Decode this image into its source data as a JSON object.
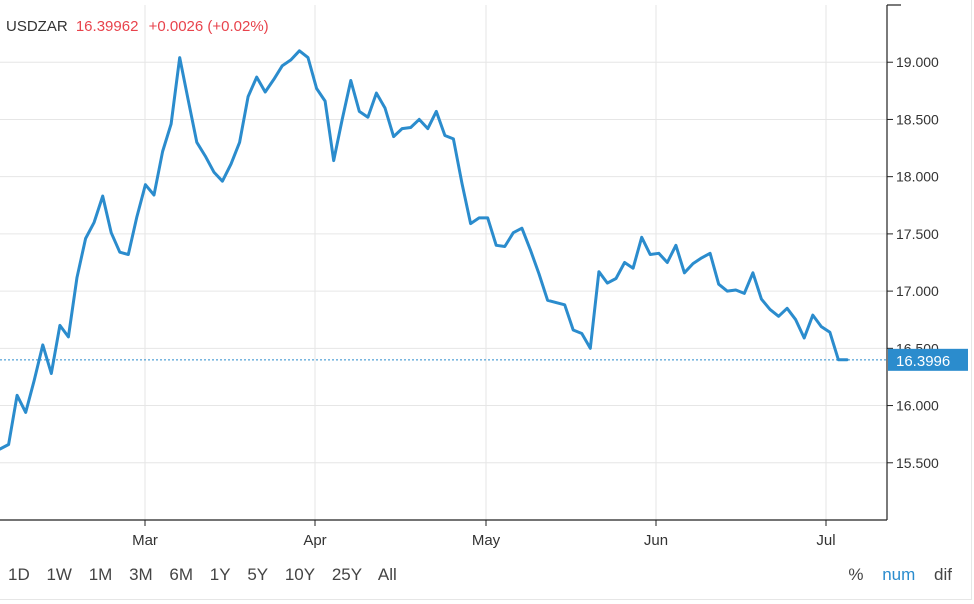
{
  "header": {
    "symbol": "USDZAR",
    "price": "16.39962",
    "change": "+0.0026 (+0.02%)"
  },
  "colors": {
    "line": "#2b8ccd",
    "change": "#e8434c",
    "grid": "#e6e6e6",
    "axis": "#222222",
    "badge_bg": "#2b8ccd",
    "badge_text": "#ffffff"
  },
  "range_buttons": [
    "1D",
    "1W",
    "1M",
    "3M",
    "6M",
    "1Y",
    "5Y",
    "10Y",
    "25Y",
    "All"
  ],
  "mode_buttons": [
    {
      "label": "%",
      "active": false
    },
    {
      "label": "num",
      "active": true
    },
    {
      "label": "dif",
      "active": false
    }
  ],
  "chart_data": {
    "type": "line",
    "title": "",
    "xlabel": "",
    "ylabel": "",
    "ylim": [
      15.0,
      19.5
    ],
    "y_ticks": [
      "15.500",
      "16.000",
      "16.500",
      "17.000",
      "17.500",
      "18.000",
      "18.500",
      "19.000"
    ],
    "x_ticks": [
      "Mar",
      "Apr",
      "May",
      "Jun",
      "Jul"
    ],
    "grid": true,
    "last_value_label": "16.3996",
    "last_value": 16.3996,
    "series": [
      {
        "values": [
          15.62,
          15.66,
          16.09,
          15.94,
          16.22,
          16.53,
          16.28,
          16.7,
          16.6,
          17.12,
          17.46,
          17.6,
          17.83,
          17.51,
          17.34,
          17.32,
          17.65,
          17.93,
          17.84,
          18.22,
          18.46,
          19.04,
          18.67,
          18.3,
          18.18,
          18.04,
          17.96,
          18.11,
          18.3,
          18.7,
          18.87,
          18.74,
          18.85,
          18.97,
          19.02,
          19.1,
          19.04,
          18.77,
          18.66,
          18.14,
          18.5,
          18.84,
          18.57,
          18.52,
          18.73,
          18.6,
          18.35,
          18.42,
          18.43,
          18.5,
          18.42,
          18.57,
          18.36,
          18.33,
          17.94,
          17.59,
          17.64,
          17.64,
          17.4,
          17.39,
          17.51,
          17.55,
          17.36,
          17.15,
          16.92,
          16.9,
          16.88,
          16.66,
          16.63,
          16.5,
          17.17,
          17.07,
          17.11,
          17.25,
          17.2,
          17.47,
          17.32,
          17.33,
          17.25,
          17.4,
          17.16,
          17.24,
          17.29,
          17.33,
          17.06,
          17.0,
          17.01,
          16.98,
          17.16,
          16.93,
          16.84,
          16.78,
          16.85,
          16.75,
          16.59,
          16.79,
          16.69,
          16.64,
          16.4,
          16.3996
        ]
      }
    ]
  }
}
